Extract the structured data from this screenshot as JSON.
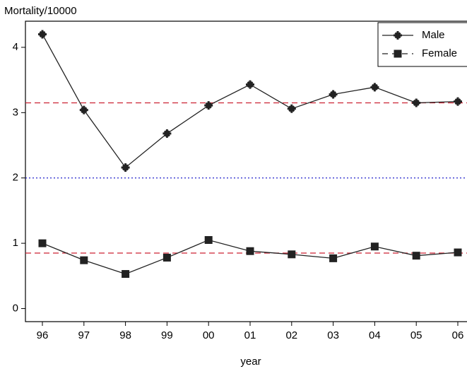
{
  "chart_data": {
    "type": "line",
    "y_label": "Mortality/10000",
    "x_label": "year",
    "categories": [
      "96",
      "97",
      "98",
      "99",
      "00",
      "01",
      "02",
      "03",
      "04",
      "05",
      "06"
    ],
    "series": [
      {
        "name": "Male",
        "color": "#222222",
        "marker": "cross",
        "values": [
          4.2,
          3.04,
          2.16,
          2.68,
          3.11,
          3.43,
          3.06,
          3.28,
          3.39,
          3.15,
          3.17
        ]
      },
      {
        "name": "Female",
        "color": "#222222",
        "marker": "square",
        "values": [
          1.0,
          0.74,
          0.53,
          0.78,
          1.05,
          0.88,
          0.83,
          0.77,
          0.95,
          0.81,
          0.86
        ]
      }
    ],
    "reference_lines": [
      {
        "value": 3.15,
        "color": "#cc2233",
        "style": "dashed"
      },
      {
        "value": 2.0,
        "color": "#2222cc",
        "style": "dotted"
      },
      {
        "value": 0.85,
        "color": "#cc2233",
        "style": "dashed"
      }
    ],
    "ylim": [
      -0.2,
      4.4
    ],
    "yticks": [
      0,
      1,
      2,
      3,
      4
    ],
    "legend": "top-right"
  }
}
